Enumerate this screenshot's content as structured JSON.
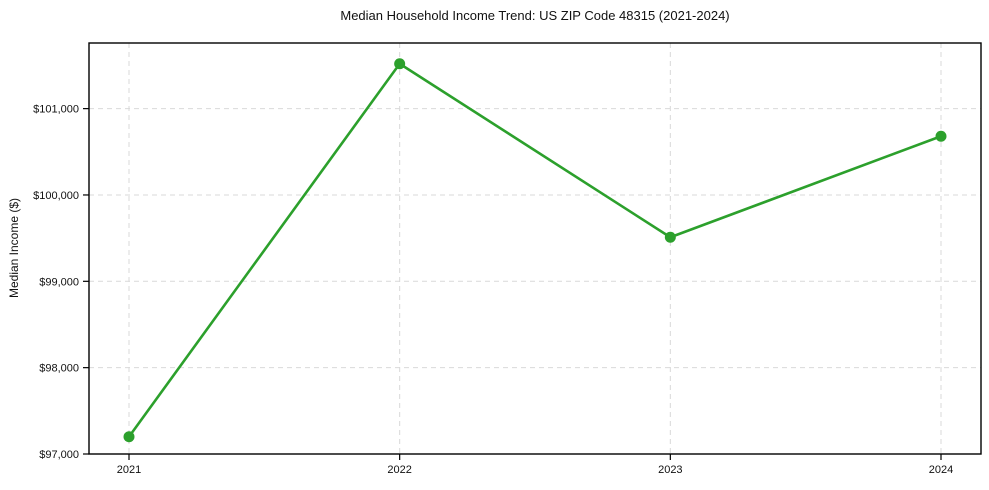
{
  "chart_data": {
    "type": "line",
    "title": "Median Household Income Trend: US ZIP Code 48315 (2021-2024)",
    "xlabel": "",
    "ylabel": "Median Income ($)",
    "categories": [
      "2021",
      "2022",
      "2023",
      "2024"
    ],
    "series": [
      {
        "name": "Median Household Income",
        "values": [
          97200,
          101520,
          99510,
          100680
        ]
      }
    ],
    "ylim": [
      97000,
      101760
    ],
    "yticks": [
      97000,
      98000,
      99000,
      100000,
      101000
    ],
    "ytick_labels": [
      "$97,000",
      "$98,000",
      "$99,000",
      "$100,000",
      "$101,000"
    ],
    "grid": true,
    "legend": "none",
    "line_color": "#2ca02c",
    "marker": "circle",
    "grid_color": "#d9d9d9",
    "axis_color": "#000000",
    "text_color": "#111111"
  }
}
